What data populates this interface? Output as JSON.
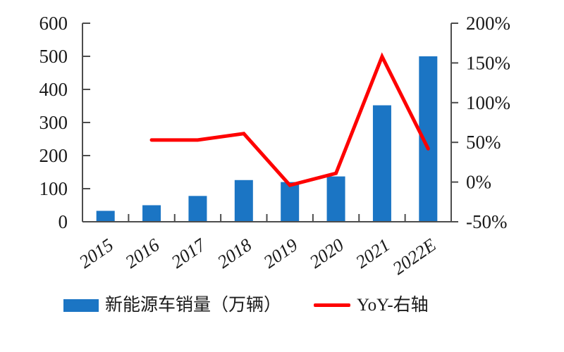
{
  "chart_data": {
    "type": "bar+line",
    "title": "",
    "categories": [
      "2015",
      "2016",
      "2017",
      "2018",
      "2019",
      "2020",
      "2021",
      "2022E"
    ],
    "series": [
      {
        "name": "新能源车销量（万辆）",
        "type": "bar",
        "axis": "left",
        "color": "#1B75C4",
        "values": [
          33,
          50,
          78,
          126,
          120,
          137,
          352,
          500
        ]
      },
      {
        "name": "YoY-右轴",
        "type": "line",
        "axis": "right",
        "color": "#FE0000",
        "values": [
          null,
          53,
          53,
          61,
          -4,
          11,
          158,
          42
        ]
      }
    ],
    "left_axis": {
      "min": 0,
      "max": 600,
      "tick_values": [
        0,
        100,
        200,
        300,
        400,
        500,
        600
      ],
      "tick_labels": [
        "0",
        "100",
        "200",
        "300",
        "400",
        "500",
        "600"
      ]
    },
    "right_axis": {
      "min": -50,
      "max": 200,
      "tick_values": [
        -50,
        0,
        50,
        100,
        150,
        200
      ],
      "tick_labels": [
        "-50%",
        "0%",
        "50%",
        "100%",
        "150%",
        "200%"
      ]
    },
    "grid": false,
    "legend_position": "bottom"
  },
  "colors": {
    "bar": "#1B75C4",
    "line": "#FE0000",
    "axis": "#4D4D4D",
    "text": "#1A1A1A"
  }
}
